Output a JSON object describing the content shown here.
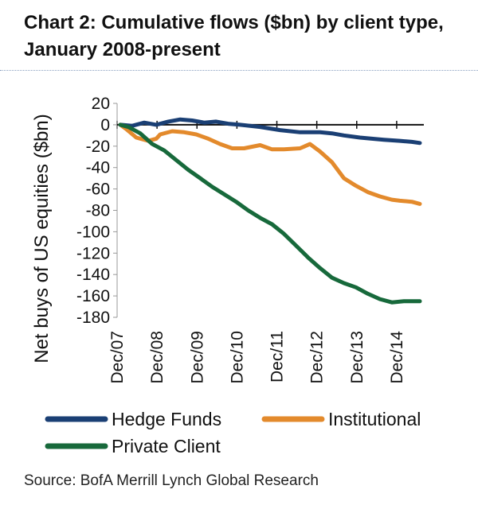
{
  "header": {
    "title_line1": "Chart 2: Cumulative flows ($bn) by client type,",
    "title_line2": "January 2008-present"
  },
  "footer": {
    "source": "Source: BofA Merrill Lynch Global Research"
  },
  "chart_data": {
    "type": "line",
    "title": "Chart 2: Cumulative flows ($bn) by client type, January 2008-present",
    "xlabel": "",
    "ylabel": "Net buys of US equities ($bn)",
    "ylim": [
      -180,
      20
    ],
    "yticks": [
      20,
      0,
      -20,
      -40,
      -60,
      -80,
      -100,
      -120,
      -140,
      -160,
      -180
    ],
    "xlim": [
      2007.92,
      2015.6
    ],
    "xticks": [
      {
        "label": "Dec/07",
        "value": 2007.92
      },
      {
        "label": "Dec/08",
        "value": 2008.92
      },
      {
        "label": "Dec/09",
        "value": 2009.92
      },
      {
        "label": "Dec/10",
        "value": 2010.92
      },
      {
        "label": "Dec/11",
        "value": 2011.92
      },
      {
        "label": "Dec/12",
        "value": 2012.92
      },
      {
        "label": "Dec/13",
        "value": 2013.92
      },
      {
        "label": "Dec/14",
        "value": 2014.92
      }
    ],
    "grid": false,
    "legend_position": "bottom",
    "series": [
      {
        "name": "Hedge Funds",
        "color": "#1a3f74",
        "points": [
          [
            2008.0,
            0
          ],
          [
            2008.3,
            -1
          ],
          [
            2008.6,
            2
          ],
          [
            2008.9,
            0
          ],
          [
            2009.2,
            3
          ],
          [
            2009.5,
            5
          ],
          [
            2009.8,
            4
          ],
          [
            2010.1,
            2
          ],
          [
            2010.4,
            3
          ],
          [
            2010.7,
            1
          ],
          [
            2011.0,
            0
          ],
          [
            2011.5,
            -2
          ],
          [
            2012.0,
            -5
          ],
          [
            2012.5,
            -7
          ],
          [
            2013.0,
            -7
          ],
          [
            2013.3,
            -8
          ],
          [
            2013.6,
            -10
          ],
          [
            2014.0,
            -12
          ],
          [
            2014.3,
            -13
          ],
          [
            2014.6,
            -14
          ],
          [
            2015.0,
            -15
          ],
          [
            2015.3,
            -16
          ],
          [
            2015.5,
            -17
          ]
        ]
      },
      {
        "name": "Institutional",
        "color": "#e38a2c",
        "points": [
          [
            2008.0,
            0
          ],
          [
            2008.15,
            -4
          ],
          [
            2008.4,
            -12
          ],
          [
            2008.7,
            -15
          ],
          [
            2008.9,
            -13
          ],
          [
            2009.0,
            -9
          ],
          [
            2009.3,
            -6
          ],
          [
            2009.6,
            -7
          ],
          [
            2009.9,
            -9
          ],
          [
            2010.2,
            -13
          ],
          [
            2010.5,
            -18
          ],
          [
            2010.8,
            -22
          ],
          [
            2011.1,
            -22
          ],
          [
            2011.5,
            -19
          ],
          [
            2011.8,
            -23
          ],
          [
            2012.1,
            -23
          ],
          [
            2012.5,
            -22
          ],
          [
            2012.75,
            -18
          ],
          [
            2013.0,
            -25
          ],
          [
            2013.3,
            -35
          ],
          [
            2013.6,
            -50
          ],
          [
            2013.9,
            -57
          ],
          [
            2014.2,
            -63
          ],
          [
            2014.5,
            -67
          ],
          [
            2014.8,
            -70
          ],
          [
            2015.0,
            -71
          ],
          [
            2015.3,
            -72
          ],
          [
            2015.5,
            -74
          ]
        ]
      },
      {
        "name": "Private Client",
        "color": "#17693b",
        "points": [
          [
            2008.0,
            0
          ],
          [
            2008.2,
            -2
          ],
          [
            2008.5,
            -8
          ],
          [
            2008.8,
            -18
          ],
          [
            2009.1,
            -24
          ],
          [
            2009.4,
            -33
          ],
          [
            2009.7,
            -42
          ],
          [
            2010.0,
            -50
          ],
          [
            2010.3,
            -58
          ],
          [
            2010.6,
            -65
          ],
          [
            2010.9,
            -72
          ],
          [
            2011.2,
            -80
          ],
          [
            2011.5,
            -87
          ],
          [
            2011.8,
            -93
          ],
          [
            2012.1,
            -102
          ],
          [
            2012.4,
            -113
          ],
          [
            2012.7,
            -124
          ],
          [
            2013.0,
            -134
          ],
          [
            2013.3,
            -143
          ],
          [
            2013.6,
            -148
          ],
          [
            2013.9,
            -152
          ],
          [
            2014.2,
            -158
          ],
          [
            2014.5,
            -163
          ],
          [
            2014.8,
            -166
          ],
          [
            2015.1,
            -165
          ],
          [
            2015.5,
            -165
          ]
        ]
      }
    ]
  }
}
